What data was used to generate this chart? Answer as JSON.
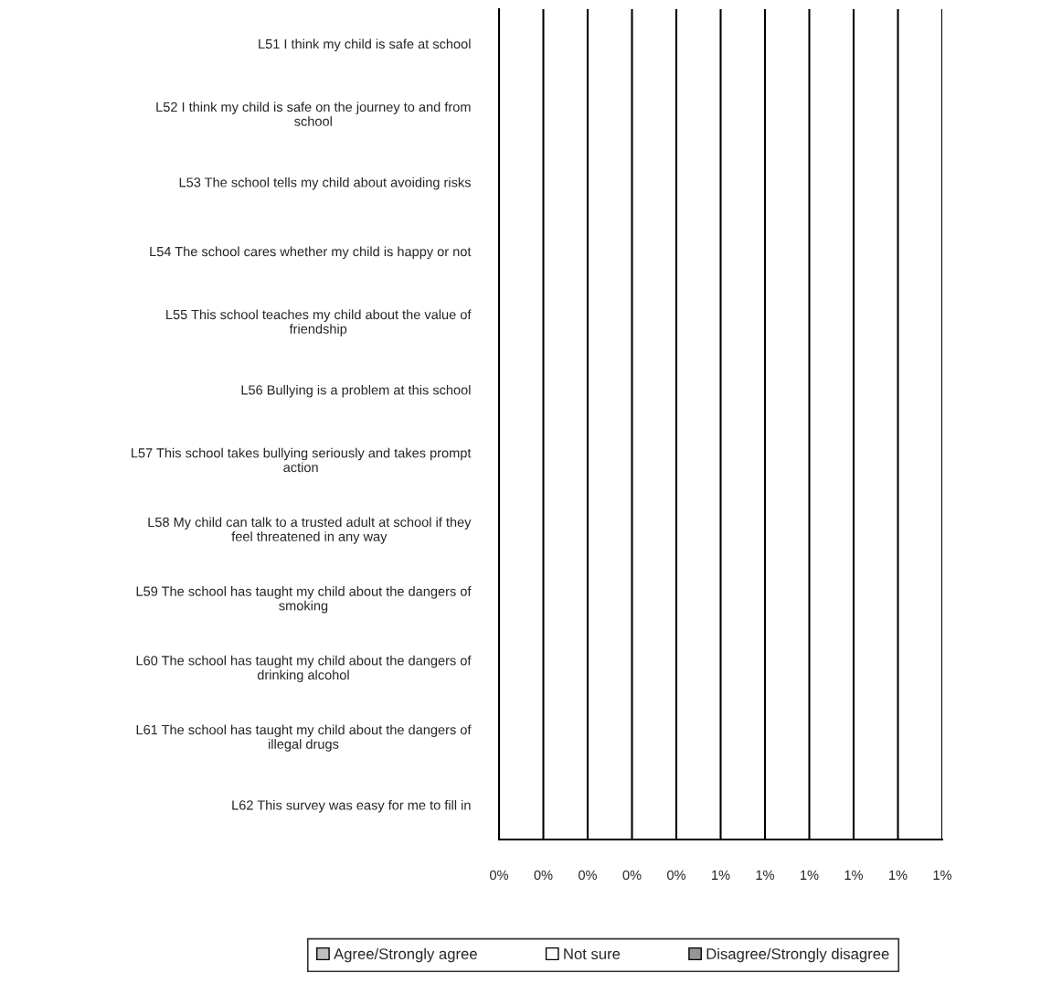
{
  "chart_data": {
    "type": "bar",
    "orientation": "horizontal",
    "categories": [
      "L51 I think my child is safe at school",
      "L52 I think my child is safe on the journey to and from\nschool",
      "L53 The school tells my child about avoiding risks",
      "L54 The school cares whether my child is happy or not",
      "L55 This school teaches my child about the value of\nfriendship",
      "L56 Bullying is a problem at this school",
      "L57 This school takes bullying seriously and takes prompt\naction",
      "L58 My child can talk to a trusted adult at school if they\nfeel threatened in any way",
      "L59 The school has taught my child about the dangers of\nsmoking",
      "L60 The school has taught my child about the dangers of\ndrinking alcohol",
      "L61 The school has taught my child about the dangers of\nillegal drugs",
      "L62 This survey was easy for me to fill in"
    ],
    "series": [
      {
        "name": "Agree/Strongly agree",
        "color": "#c0c0c0",
        "values": [
          null,
          null,
          null,
          null,
          null,
          null,
          null,
          null,
          null,
          null,
          null,
          null
        ]
      },
      {
        "name": "Not sure",
        "color": "#ffffff",
        "values": [
          null,
          null,
          null,
          null,
          null,
          null,
          null,
          null,
          null,
          null,
          null,
          null
        ]
      },
      {
        "name": "Disagree/Strongly disagree",
        "color": "#969696",
        "values": [
          null,
          null,
          null,
          null,
          null,
          null,
          null,
          null,
          null,
          null,
          null,
          null
        ]
      }
    ],
    "xlim": [
      0,
      1
    ],
    "xticks": [
      {
        "value": 0,
        "label": "0%"
      },
      {
        "value": 0.1,
        "label": "0%"
      },
      {
        "value": 0.2,
        "label": "0%"
      },
      {
        "value": 0.3,
        "label": "0%"
      },
      {
        "value": 0.4,
        "label": "0%"
      },
      {
        "value": 0.5,
        "label": "1%"
      },
      {
        "value": 0.6,
        "label": "1%"
      },
      {
        "value": 0.7,
        "label": "1%"
      },
      {
        "value": 0.8,
        "label": "1%"
      },
      {
        "value": 0.9,
        "label": "1%"
      },
      {
        "value": 1,
        "label": "1%"
      }
    ],
    "grid": "x",
    "legend": "bottom"
  }
}
